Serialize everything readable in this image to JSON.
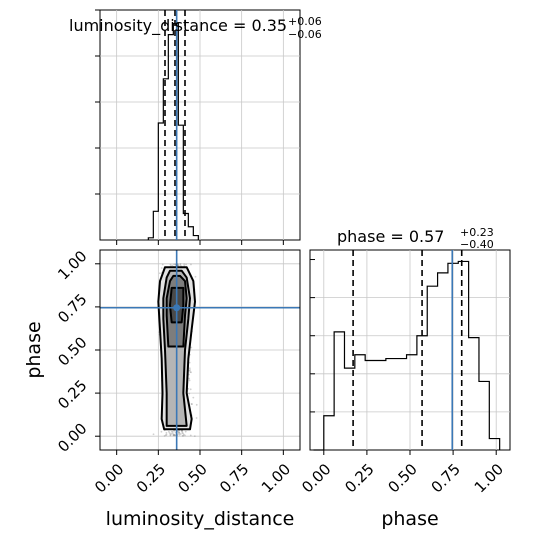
{
  "chart_data": {
    "type": "corner",
    "parameters": [
      "luminosity_distance",
      "phase"
    ],
    "truth_color": "#3b78b6",
    "truths": {
      "luminosity_distance": 0.36,
      "phase": 0.745
    },
    "panels": {
      "luminosity_distance_hist": {
        "title_param": "luminosity_distance",
        "title_value": "0.35",
        "title_upper": "+0.06",
        "title_lower": "−0.06",
        "xlim": [
          -0.1,
          1.1
        ],
        "quantiles": [
          0.29,
          0.35,
          0.41
        ],
        "bin_edges": [
          0.19,
          0.22,
          0.25,
          0.28,
          0.31,
          0.34,
          0.37,
          0.4,
          0.43,
          0.46,
          0.49
        ],
        "counts": [
          0.01,
          0.13,
          0.53,
          0.73,
          0.93,
          0.98,
          0.52,
          0.12,
          0.06,
          0.02
        ]
      },
      "phase_hist": {
        "title_param": "phase",
        "title_value": "0.57",
        "title_upper": "+0.23",
        "title_lower": "−0.40",
        "xlim": [
          -0.08,
          1.08
        ],
        "quantiles": [
          0.17,
          0.57,
          0.8
        ],
        "bin_edges": [
          -0.06,
          0.0,
          0.06,
          0.12,
          0.18,
          0.24,
          0.3,
          0.36,
          0.42,
          0.48,
          0.54,
          0.6,
          0.66,
          0.72,
          0.78,
          0.84,
          0.9,
          0.96,
          1.02
        ],
        "counts": [
          0.0,
          0.18,
          0.62,
          0.43,
          0.5,
          0.47,
          0.47,
          0.48,
          0.48,
          0.5,
          0.6,
          0.86,
          0.93,
          0.98,
          0.99,
          0.59,
          0.36,
          0.06
        ],
        "ylim": [
          0,
          1.05
        ]
      },
      "density_2d": {
        "x_param": "luminosity_distance",
        "y_param": "phase",
        "xlim": [
          -0.1,
          1.1
        ],
        "ylim": [
          -0.08,
          1.08
        ],
        "scatter_density_note": "grey sample cloud around luminosity_distance 0.24-0.48, phase 0-1"
      }
    },
    "x_ticks": {
      "luminosity_distance": [
        "0.00",
        "0.25",
        "0.50",
        "0.75",
        "1.00"
      ],
      "phase": [
        "0.00",
        "0.25",
        "0.50",
        "0.75",
        "1.00"
      ]
    },
    "x_tick_values": [
      0.0,
      0.25,
      0.5,
      0.75,
      1.0
    ],
    "y_ticks": {
      "phase": [
        "0.00",
        "0.25",
        "0.50",
        "0.75",
        "1.00"
      ]
    },
    "xlabels": {
      "left": "luminosity_distance",
      "right": "phase"
    },
    "ylabel": "phase",
    "grid": true
  }
}
